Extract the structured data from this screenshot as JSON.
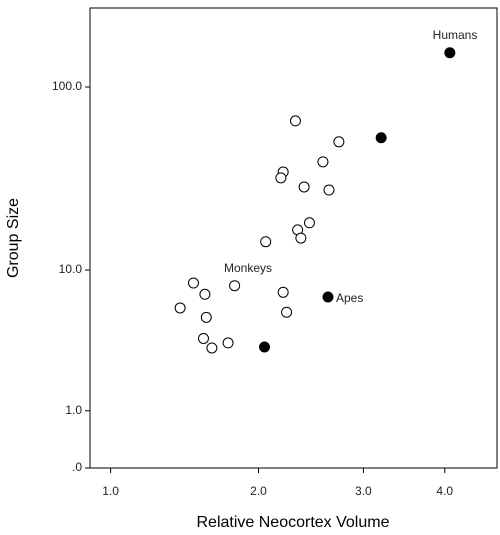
{
  "chart_data": {
    "type": "scatter",
    "xlabel": "Relative Neocortex Volume",
    "ylabel": "Group Size",
    "xscale": "log1p",
    "yscale": "log1p",
    "xlim": [
      0.89,
      4.77
    ],
    "ylim": [
      0,
      262
    ],
    "xticks": [
      {
        "value": 1,
        "label": "1.0"
      },
      {
        "value": 2,
        "label": "2.0"
      },
      {
        "value": 3,
        "label": "3.0"
      },
      {
        "value": 4,
        "label": "4.0"
      }
    ],
    "yticks": [
      {
        "value": 0,
        "label": ".0"
      },
      {
        "value": 1,
        "label": "1.0"
      },
      {
        "value": 10,
        "label": "10.0"
      },
      {
        "value": 100,
        "label": "100.0"
      }
    ],
    "series": [
      {
        "color": "#000000",
        "filled": false,
        "x": [
          2.32,
          2.74,
          2.58,
          2.21,
          2.19,
          2.4,
          2.64,
          2.45,
          2.34,
          2.37,
          2.06,
          1.51,
          1.81,
          1.59,
          2.21,
          1.42,
          2.24,
          1.6,
          1.58,
          1.76,
          1.64
        ],
        "values": [
          66,
          51,
          39.8,
          35.1,
          32.6,
          29.1,
          28,
          18.5,
          16.9,
          15.2,
          14.5,
          8.4,
          8.1,
          7.2,
          7.4,
          5.95,
          5.6,
          5.2,
          3.8,
          3.55,
          3.28
        ]
      },
      {
        "color": "#000000",
        "filled": true,
        "x": [
          4.07,
          3.2,
          2.63,
          2.05
        ],
        "values": [
          152,
          53.6,
          6.94,
          3.33
        ]
      }
    ],
    "annotations": [
      "Humans",
      "Monkeys",
      "Apes"
    ]
  }
}
